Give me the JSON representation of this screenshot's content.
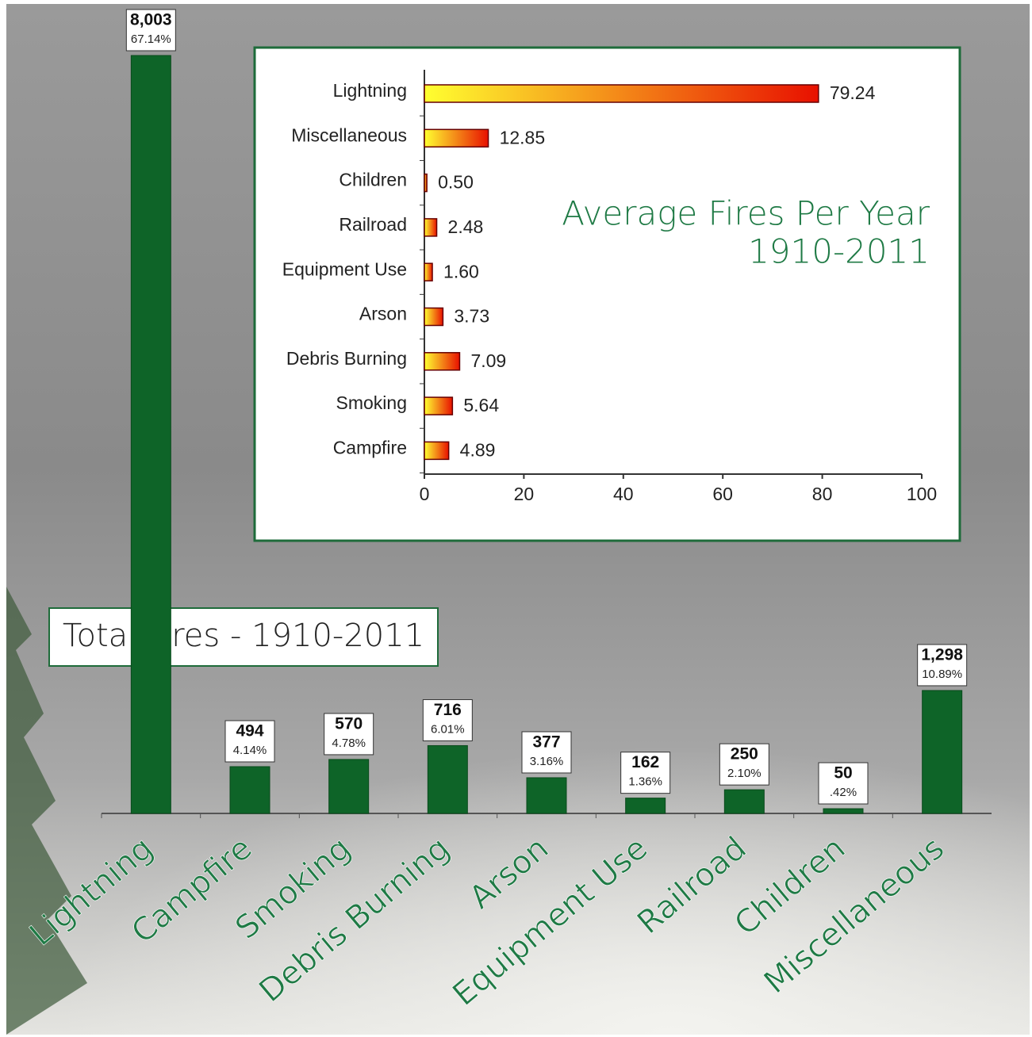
{
  "chart_data": [
    {
      "type": "bar",
      "title": "Total Fires - 1910-2011",
      "categories": [
        "Lightning",
        "Campfire",
        "Smoking",
        "Debris Burning",
        "Arson",
        "Equipment Use",
        "Railroad",
        "Children",
        "Miscellaneous"
      ],
      "values": [
        8003,
        494,
        570,
        716,
        377,
        162,
        250,
        50,
        1298
      ],
      "value_labels": [
        "8,003",
        "494",
        "570",
        "716",
        "377",
        "162",
        "250",
        "50",
        "1,298"
      ],
      "share_labels": [
        "67.14%",
        "4.14%",
        "4.78%",
        "6.01%",
        "3.16%",
        "1.36%",
        "2.10%",
        ".42%",
        "10.89%"
      ],
      "color": "#0e6428"
    },
    {
      "type": "bar",
      "orientation": "horizontal",
      "title": "Average Fires Per Year",
      "subtitle": "1910-2011",
      "categories": [
        "Lightning",
        "Miscellaneous",
        "Children",
        "Railroad",
        "Equipment Use",
        "Arson",
        "Debris Burning",
        "Smoking",
        "Campfire"
      ],
      "values": [
        79.24,
        12.85,
        0.5,
        2.48,
        1.6,
        3.73,
        7.09,
        5.64,
        4.89
      ],
      "value_labels": [
        "79.24",
        "12.85",
        "0.50",
        "2.48",
        "1.60",
        "3.73",
        "7.09",
        "5.64",
        "4.89"
      ],
      "xlim": [
        0,
        100
      ],
      "xticks": [
        0,
        20,
        40,
        60,
        80,
        100
      ],
      "color": [
        "#ffff30",
        "#e81000"
      ]
    }
  ]
}
